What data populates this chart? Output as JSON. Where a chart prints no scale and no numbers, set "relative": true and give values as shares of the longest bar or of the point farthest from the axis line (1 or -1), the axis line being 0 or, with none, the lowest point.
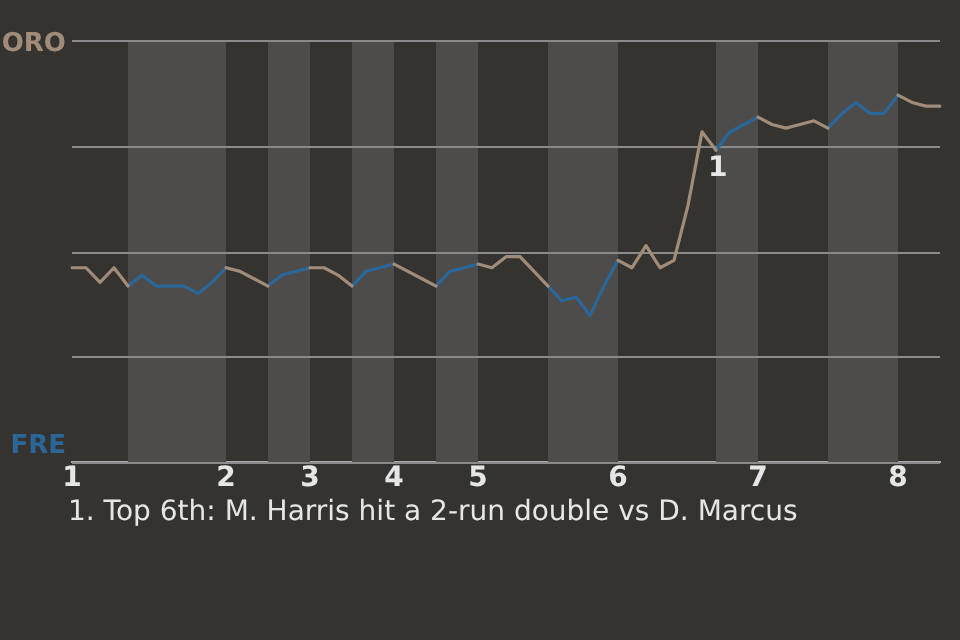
{
  "chart_data": {
    "type": "line",
    "relative": true,
    "categories": [
      "1",
      null,
      null,
      null,
      null,
      null,
      null,
      null,
      null,
      null,
      null,
      "2",
      null,
      null,
      null,
      null,
      null,
      "3",
      null,
      null,
      null,
      null,
      null,
      "4",
      null,
      null,
      null,
      null,
      null,
      "5",
      null,
      null,
      null,
      null,
      null,
      null,
      null,
      null,
      null,
      "6",
      null,
      null,
      null,
      null,
      null,
      null,
      null,
      null,
      null,
      "7",
      null,
      null,
      null,
      null,
      null,
      null,
      null,
      null,
      null,
      "8",
      null,
      null,
      null
    ],
    "series": [
      {
        "name": "ORO",
        "color": "#a08c78",
        "values": [
          0.53,
          0.53,
          0.49,
          0.53,
          0.48,
          null,
          null,
          null,
          null,
          null,
          null,
          0.53,
          0.52,
          0.5,
          0.48,
          null,
          null,
          0.53,
          0.53,
          0.51,
          0.48,
          null,
          null,
          0.54,
          0.52,
          0.5,
          0.48,
          null,
          null,
          0.54,
          0.53,
          0.56,
          0.56,
          0.52,
          0.48,
          null,
          null,
          null,
          null,
          0.55,
          0.53,
          0.59,
          0.53,
          0.55,
          0.7,
          0.9,
          0.85,
          null,
          null,
          0.94,
          0.92,
          0.91,
          0.92,
          0.93,
          0.91,
          null,
          null,
          null,
          null,
          1,
          0.98,
          0.97,
          0.97
        ]
      },
      {
        "name": "FRE",
        "color": "#2b6699",
        "values": [
          null,
          null,
          null,
          null,
          0.48,
          0.51,
          0.48,
          0.48,
          0.48,
          0.46,
          0.49,
          0.53,
          null,
          null,
          0.48,
          0.51,
          0.52,
          0.53,
          null,
          null,
          0.48,
          0.52,
          0.53,
          0.54,
          null,
          null,
          0.48,
          0.52,
          0.53,
          0.54,
          null,
          null,
          null,
          null,
          0.48,
          0.44,
          0.45,
          0.4,
          0.48,
          0.55,
          null,
          null,
          null,
          null,
          null,
          null,
          0.85,
          0.9,
          0.92,
          0.94,
          null,
          null,
          null,
          null,
          0.91,
          0.95,
          0.98,
          0.95,
          0.95,
          1,
          null,
          null,
          null
        ]
      }
    ],
    "annotations": [
      "1",
      "1. Top 6th: M. Harris hit a 2-run double vs D. Marcus"
    ],
    "grid": true,
    "legend": false,
    "marker": "none",
    "line_style": "solid"
  }
}
